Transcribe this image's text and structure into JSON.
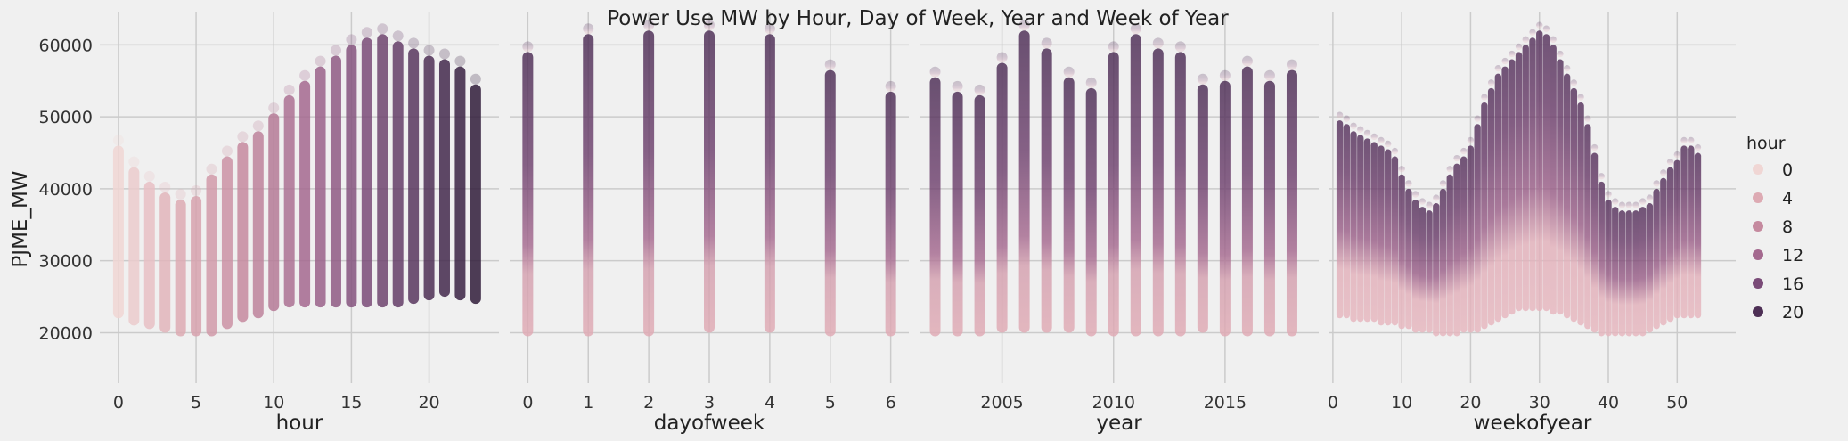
{
  "chart_data": {
    "type": "scatter",
    "title": "Power Use MW by Hour, Day of Week, Year and Week of Year",
    "ylabel": "PJME_MW",
    "ylim": [
      13000,
      64500
    ],
    "yticks": [
      20000,
      30000,
      40000,
      50000,
      60000
    ],
    "grid": true,
    "legend": {
      "title": "hour",
      "placement": "right",
      "entries": [
        {
          "label": "0",
          "color": "#f0d6d4"
        },
        {
          "label": "4",
          "color": "#ddaab3"
        },
        {
          "label": "8",
          "color": "#c58a9f"
        },
        {
          "label": "12",
          "color": "#a4698f"
        },
        {
          "label": "16",
          "color": "#7a4b78"
        },
        {
          "label": "20",
          "color": "#4d2f55"
        }
      ]
    },
    "panels": [
      {
        "xlabel": "hour",
        "xlim": [
          -1.2,
          24.5
        ],
        "xticks": [
          0,
          5,
          10,
          15,
          20
        ],
        "x": [
          0,
          1,
          2,
          3,
          4,
          5,
          6,
          7,
          8,
          9,
          10,
          11,
          12,
          13,
          14,
          15,
          16,
          17,
          18,
          19,
          20,
          21,
          22,
          23
        ],
        "y_min": [
          22000,
          21000,
          20500,
          20000,
          19500,
          19500,
          19500,
          20500,
          21500,
          22000,
          23000,
          23500,
          23500,
          23500,
          23500,
          23500,
          23500,
          23500,
          23500,
          24000,
          24500,
          25000,
          24500,
          24000
        ],
        "y_max": [
          46000,
          43000,
          41000,
          39500,
          38500,
          39000,
          42000,
          44500,
          46500,
          48000,
          50500,
          53000,
          55000,
          57000,
          58500,
          60000,
          61000,
          61500,
          60500,
          59500,
          58500,
          58000,
          57000,
          54500
        ]
      },
      {
        "xlabel": "dayofweek",
        "xlim": [
          -0.3,
          6.3
        ],
        "xticks": [
          0,
          1,
          2,
          3,
          4,
          5,
          6
        ],
        "x": [
          0,
          1,
          2,
          3,
          4,
          5,
          6
        ],
        "y_min": [
          19500,
          19500,
          19500,
          20000,
          20000,
          19500,
          19500
        ],
        "y_max": [
          59000,
          61500,
          62000,
          62000,
          61500,
          56500,
          53500
        ]
      },
      {
        "xlabel": "year",
        "xlim": [
          2001.3,
          2019.2
        ],
        "xticks": [
          2005,
          2010,
          2015
        ],
        "x": [
          2002,
          2003,
          2004,
          2005,
          2006,
          2007,
          2008,
          2009,
          2010,
          2011,
          2012,
          2013,
          2014,
          2015,
          2016,
          2017,
          2018
        ],
        "y_min": [
          19500,
          19500,
          19500,
          20000,
          20000,
          20000,
          20000,
          19500,
          19500,
          19500,
          19500,
          19500,
          20000,
          19500,
          19500,
          19500,
          19500
        ],
        "y_max": [
          55500,
          53500,
          53000,
          57500,
          62000,
          59500,
          55500,
          54000,
          59000,
          61500,
          59500,
          59000,
          54500,
          55000,
          57000,
          55000,
          56500
        ]
      },
      {
        "xlabel": "weekofyear",
        "xlim": [
          -0.5,
          58.5
        ],
        "xticks": [
          0,
          10,
          20,
          30,
          40,
          50
        ],
        "x": [
          1,
          2,
          3,
          4,
          5,
          6,
          7,
          8,
          9,
          10,
          11,
          12,
          13,
          14,
          15,
          16,
          17,
          18,
          19,
          20,
          21,
          22,
          23,
          24,
          25,
          26,
          27,
          28,
          29,
          30,
          31,
          32,
          33,
          34,
          35,
          36,
          37,
          38,
          39,
          40,
          41,
          42,
          43,
          44,
          45,
          46,
          47,
          48,
          49,
          50,
          51,
          52,
          53
        ],
        "y_min": [
          22000,
          22000,
          21500,
          21500,
          21500,
          21500,
          21000,
          21000,
          21000,
          20500,
          20500,
          20000,
          20000,
          20000,
          19500,
          19500,
          19500,
          19500,
          20000,
          20000,
          20000,
          20500,
          21000,
          21500,
          22000,
          22500,
          23000,
          23000,
          23000,
          23000,
          23000,
          22500,
          22500,
          22000,
          21500,
          21000,
          20500,
          20000,
          19500,
          19500,
          19500,
          19500,
          19500,
          19500,
          19500,
          20000,
          20500,
          21000,
          21500,
          22000,
          22000,
          22000,
          22000
        ],
        "y_max": [
          49500,
          49000,
          48000,
          47500,
          47000,
          46500,
          46000,
          45500,
          44500,
          42000,
          40000,
          38500,
          37500,
          37000,
          38000,
          40000,
          42000,
          43500,
          44500,
          46000,
          49000,
          52000,
          54000,
          56000,
          57000,
          58000,
          59000,
          60000,
          61000,
          62000,
          61500,
          60000,
          58000,
          56000,
          54000,
          52000,
          49000,
          45000,
          41000,
          38500,
          37500,
          37000,
          37000,
          37000,
          37500,
          38000,
          40000,
          41500,
          43000,
          44000,
          46000,
          46000,
          45000
        ]
      }
    ]
  }
}
